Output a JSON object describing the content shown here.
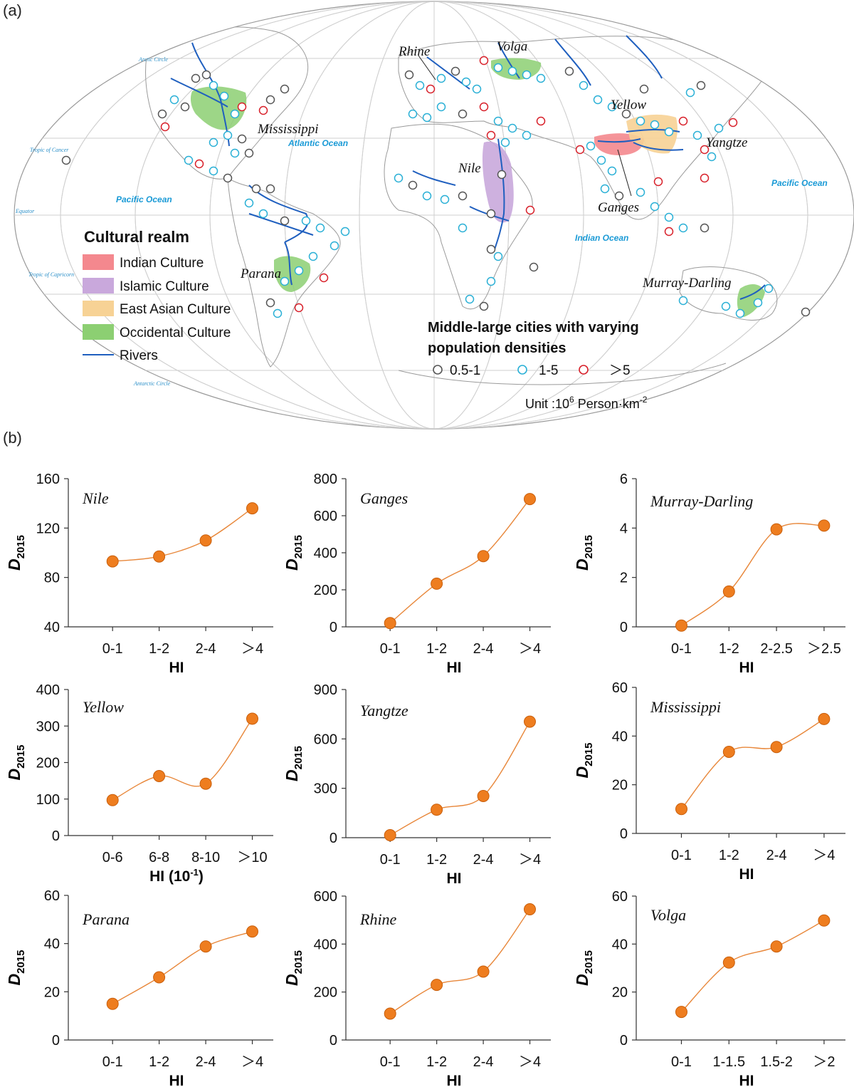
{
  "panels": {
    "a": "(a)",
    "b": "(b)"
  },
  "map": {
    "rivers": [
      "Rhine",
      "Volga",
      "Mississippi",
      "Yellow",
      "Yangtze",
      "Nile",
      "Ganges",
      "Parana",
      "Murray-Darling"
    ],
    "oceans": [
      "Atlantic Ocean",
      "Pacific Ocean",
      "Pacific Ocean",
      "Indian Ocean"
    ],
    "lines": [
      "Arctic Circle",
      "Tropic of Cancer",
      "Equator",
      "Tropic of Capricorn",
      "Antarctic Circle"
    ],
    "legend": {
      "title": "Cultural realm",
      "items": [
        {
          "label": "Indian Culture",
          "color": "#f4888e"
        },
        {
          "label": "Islamic Culture",
          "color": "#c9a8dc"
        },
        {
          "label": "East Asian Culture",
          "color": "#f7d295"
        },
        {
          "label": "Occidental Culture",
          "color": "#8ccf72"
        },
        {
          "label": "Rivers",
          "color": "#1f5fbf"
        }
      ]
    },
    "city_legend": {
      "title_line1": "Middle-large cities with varying",
      "title_line2": "population densities",
      "classes": [
        {
          "label": "0.5-1",
          "color": "#555555"
        },
        {
          "label": "1-5",
          "color": "#2ab0d6"
        },
        {
          "label": "＞5",
          "color": "#d8202a"
        }
      ],
      "unit_prefix": "Unit :10",
      "unit_sup1": "6",
      "unit_mid": " Person·km",
      "unit_sup2": "-2"
    }
  },
  "colors": {
    "line": "#e8873a",
    "marker": "#ee7d1f",
    "marker_edge": "#c95f0c",
    "axis": "#333333"
  },
  "chart_data": [
    {
      "type": "line",
      "title": "Nile",
      "categories": [
        "0-1",
        "1-2",
        "2-4",
        "＞4"
      ],
      "values": [
        93,
        97,
        110,
        136
      ],
      "ylim": [
        40,
        160
      ],
      "yticks": [
        40,
        80,
        120,
        160
      ],
      "xlabel": "HI",
      "ylabel": "D",
      "ylabel_sub": "2015"
    },
    {
      "type": "line",
      "title": "Ganges",
      "categories": [
        "0-1",
        "1-2",
        "2-4",
        "＞4"
      ],
      "values": [
        20,
        233,
        382,
        690
      ],
      "ylim": [
        0,
        800
      ],
      "yticks": [
        0,
        200,
        400,
        600,
        800
      ],
      "xlabel": "HI",
      "ylabel": "D",
      "ylabel_sub": "2015"
    },
    {
      "type": "line",
      "title": "Murray-Darling",
      "categories": [
        "0-1",
        "1-2",
        "2-2.5",
        "＞2.5"
      ],
      "values": [
        0.05,
        1.43,
        3.95,
        4.1
      ],
      "ylim": [
        0,
        6
      ],
      "yticks": [
        0,
        2,
        4,
        6
      ],
      "xlabel": "HI",
      "ylabel": "D",
      "ylabel_sub": "2015"
    },
    {
      "type": "line",
      "title": "Yellow",
      "categories": [
        "0-6",
        "6-8",
        "8-10",
        "＞10"
      ],
      "values": [
        97,
        163,
        142,
        320
      ],
      "ylim": [
        0,
        400
      ],
      "yticks": [
        0,
        100,
        200,
        300,
        400
      ],
      "xlabel": "HI (10",
      "xlabel_sup": "-1",
      "xlabel_suffix": ")",
      "ylabel": "D",
      "ylabel_sub": "2015"
    },
    {
      "type": "line",
      "title": "Yangtze",
      "categories": [
        "0-1",
        "1-2",
        "2-4",
        "＞4"
      ],
      "values": [
        15,
        170,
        253,
        705
      ],
      "ylim": [
        0,
        900
      ],
      "yticks": [
        0,
        300,
        600,
        900
      ],
      "xlabel": "HI",
      "ylabel": "D",
      "ylabel_sub": "2015"
    },
    {
      "type": "line",
      "title": "Mississippi",
      "categories": [
        "0-1",
        "1-2",
        "2-4",
        "＞4"
      ],
      "values": [
        10,
        33.5,
        35.5,
        47
      ],
      "ylim": [
        0,
        60
      ],
      "yticks": [
        0,
        20,
        40,
        60
      ],
      "xlabel": "HI",
      "ylabel": "D",
      "ylabel_sub": "2015"
    },
    {
      "type": "line",
      "title": "Parana",
      "categories": [
        "0-1",
        "1-2",
        "2-4",
        "＞4"
      ],
      "values": [
        15,
        26,
        38.8,
        45
      ],
      "ylim": [
        0,
        60
      ],
      "yticks": [
        0,
        20,
        40,
        60
      ],
      "xlabel": "HI",
      "ylabel": "D",
      "ylabel_sub": "2015"
    },
    {
      "type": "line",
      "title": "Rhine",
      "categories": [
        "0-1",
        "1-2",
        "2-4",
        "＞4"
      ],
      "values": [
        110,
        230,
        285,
        545
      ],
      "ylim": [
        0,
        600
      ],
      "yticks": [
        0,
        200,
        400,
        600
      ],
      "xlabel": "HI",
      "ylabel": "D",
      "ylabel_sub": "2015"
    },
    {
      "type": "line",
      "title": "Volga",
      "categories": [
        "0-1",
        "1-1.5",
        "1.5-2",
        "＞2"
      ],
      "values": [
        11.7,
        32.3,
        39,
        49.8
      ],
      "ylim": [
        0,
        60
      ],
      "yticks": [
        0,
        20,
        40,
        60
      ],
      "xlabel": "HI",
      "ylabel": "D",
      "ylabel_sub": "2015"
    }
  ]
}
